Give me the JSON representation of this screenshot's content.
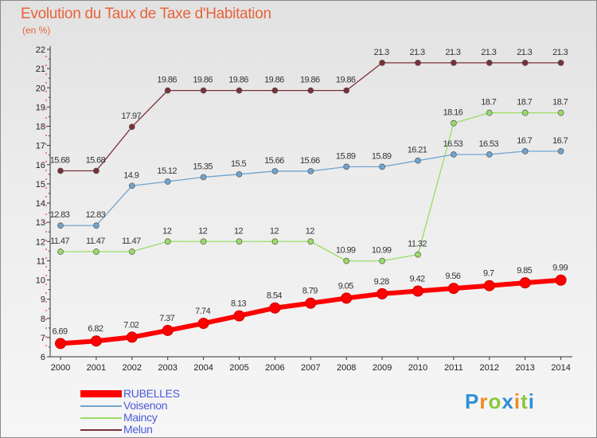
{
  "chart_data": {
    "type": "line",
    "title": "Evolution du Taux de Taxe d'Habitation",
    "subtitle": "(en %)",
    "x": [
      "2000",
      "2001",
      "2002",
      "2003",
      "2004",
      "2005",
      "2006",
      "2007",
      "2008",
      "2009",
      "2010",
      "2011",
      "2012",
      "2013",
      "2014"
    ],
    "y_ticks": [
      "6",
      "7",
      "8",
      "9",
      "10",
      "11",
      "12",
      "13",
      "14",
      "15",
      "16",
      "17",
      "18",
      "19",
      "20",
      "21",
      "22"
    ],
    "ylim": [
      6,
      22
    ],
    "grid": false,
    "legend_position": "bottom-left",
    "series": [
      {
        "name": "RUBELLES",
        "color": "#ff0000",
        "values": [
          6.69,
          6.82,
          7.02,
          7.37,
          7.74,
          8.13,
          8.54,
          8.79,
          9.05,
          9.28,
          9.42,
          9.56,
          9.7,
          9.85,
          9.99
        ],
        "labels": [
          "6.69",
          "6.82",
          "7.02",
          "7.37",
          "7.74",
          "8.13",
          "8.54",
          "8.79",
          "9.05",
          "9.28",
          "9.42",
          "9.56",
          "9.7",
          "9.85",
          "9.99"
        ]
      },
      {
        "name": "Voisenon",
        "color": "#6fa4cf",
        "values": [
          12.83,
          12.83,
          14.9,
          15.12,
          15.35,
          15.5,
          15.66,
          15.66,
          15.89,
          15.89,
          16.21,
          16.53,
          16.53,
          16.7,
          16.7
        ],
        "labels": [
          "12.83",
          "12.83",
          "14.9",
          "15.12",
          "15.35",
          "15.5",
          "15.66",
          "15.66",
          "15.89",
          "15.89",
          "16.21",
          "16.53",
          "16.53",
          "16.7",
          "16.7"
        ]
      },
      {
        "name": "Maincy",
        "color": "#99dd66",
        "values": [
          11.47,
          11.47,
          11.47,
          12,
          12,
          12,
          12,
          12,
          10.99,
          10.99,
          11.32,
          18.16,
          18.7,
          18.7,
          18.7
        ],
        "labels": [
          "11.47",
          "11.47",
          "11.47",
          "12",
          "12",
          "12",
          "12",
          "12",
          "10.99",
          "10.99",
          "11.32",
          "18.16",
          "18.7",
          "18.7",
          "18.7"
        ]
      },
      {
        "name": "Melun",
        "color": "#7a3036",
        "values": [
          15.68,
          15.68,
          17.97,
          19.86,
          19.86,
          19.86,
          19.86,
          19.86,
          19.86,
          21.3,
          21.3,
          21.3,
          21.3,
          21.3,
          21.3
        ],
        "labels": [
          "15.68",
          "15.68",
          "17.97",
          "19.86",
          "19.86",
          "19.86",
          "19.86",
          "19.86",
          "19.86",
          "21.3",
          "21.3",
          "21.3",
          "21.3",
          "21.3",
          "21.3"
        ]
      }
    ]
  },
  "logo": {
    "text": "Proxiti",
    "letters": [
      {
        "ch": "P",
        "color": "#2f8fd6"
      },
      {
        "ch": "r",
        "color": "#f08a1c"
      },
      {
        "ch": "o",
        "color": "#8cc63e"
      },
      {
        "ch": "x",
        "color": "#2f8fd6"
      },
      {
        "ch": "i",
        "color": "#f08a1c"
      },
      {
        "ch": "t",
        "color": "#8cc63e"
      },
      {
        "ch": "i",
        "color": "#2f8fd6"
      }
    ]
  }
}
